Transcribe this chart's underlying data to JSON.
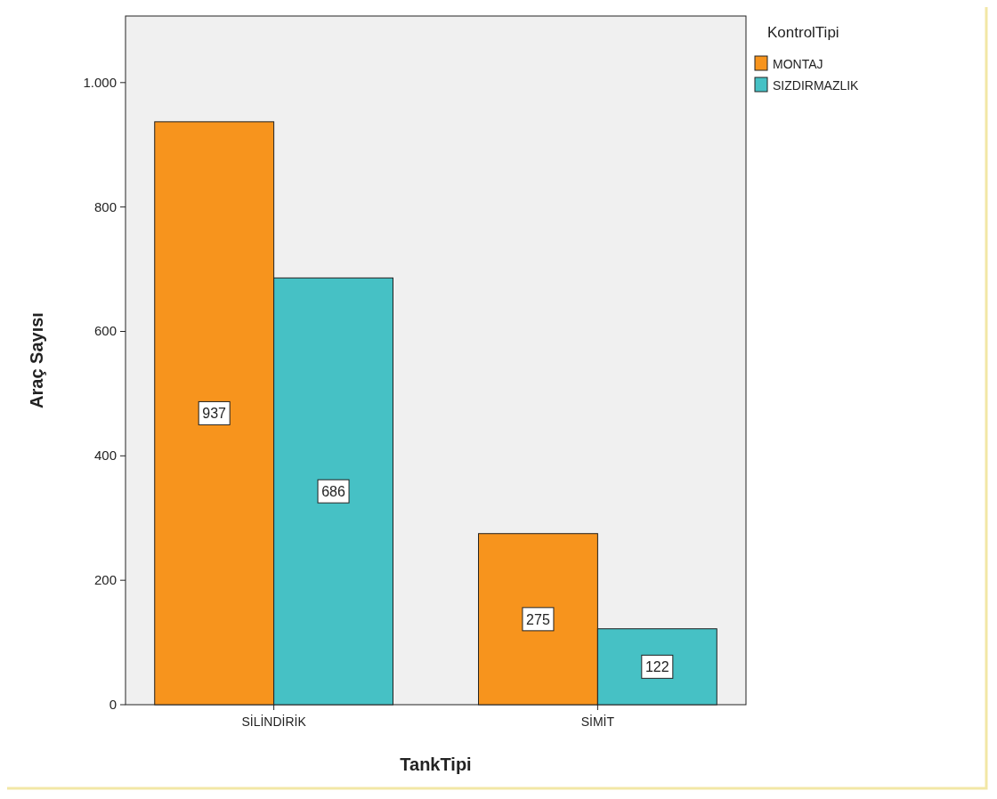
{
  "chart_data": {
    "type": "bar",
    "xlabel": "TankTipi",
    "ylabel": "Araç Sayısı",
    "legend_title": "KontrolTipi",
    "categories": [
      "SİLİNDİRİK",
      "SİMİT"
    ],
    "series": [
      {
        "name": "MONTAJ",
        "color": "#f7941d",
        "values": [
          937,
          275
        ]
      },
      {
        "name": "SIZDIRMAZLIK",
        "color": "#46c1c5",
        "values": [
          686,
          122
        ]
      }
    ],
    "ylim": [
      0,
      1107
    ],
    "yticks": [
      0,
      200,
      400,
      600,
      800,
      {
        "value": 1000,
        "label": "1.000"
      }
    ],
    "data_labels": true,
    "legend": "top right",
    "grid": false
  }
}
